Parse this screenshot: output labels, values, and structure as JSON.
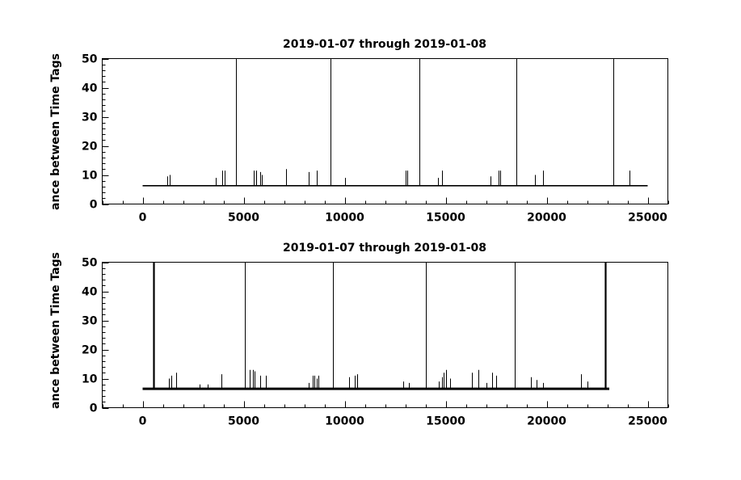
{
  "chart_data": [
    {
      "type": "line",
      "title": "2019-01-07 through 2019-01-08",
      "xlabel": "",
      "ylabel": "ance between Time Tags",
      "xlim": [
        -2000,
        26000
      ],
      "ylim": [
        0,
        50
      ],
      "xticks": [
        0,
        5000,
        10000,
        15000,
        20000,
        25000
      ],
      "yticks": [
        0,
        10,
        20,
        30,
        40,
        50
      ],
      "grid": false,
      "series": [
        {
          "baseline": 6.3,
          "x_start": 0,
          "x_end": 25000,
          "spikes": [
            {
              "x": 1200,
              "y": 9.5
            },
            {
              "x": 1350,
              "y": 10
            },
            {
              "x": 3600,
              "y": 9
            },
            {
              "x": 3950,
              "y": 11.5
            },
            {
              "x": 4050,
              "y": 11.5
            },
            {
              "x": 4600,
              "y": 50
            },
            {
              "x": 5500,
              "y": 11.5
            },
            {
              "x": 5600,
              "y": 11.5
            },
            {
              "x": 5800,
              "y": 11
            },
            {
              "x": 5900,
              "y": 10
            },
            {
              "x": 7100,
              "y": 12
            },
            {
              "x": 8200,
              "y": 11
            },
            {
              "x": 8600,
              "y": 11.5
            },
            {
              "x": 9300,
              "y": 50
            },
            {
              "x": 10000,
              "y": 9
            },
            {
              "x": 13000,
              "y": 11.5
            },
            {
              "x": 13100,
              "y": 11.5
            },
            {
              "x": 13700,
              "y": 50
            },
            {
              "x": 14600,
              "y": 9
            },
            {
              "x": 14800,
              "y": 11.5
            },
            {
              "x": 17200,
              "y": 9.5
            },
            {
              "x": 17600,
              "y": 11.5
            },
            {
              "x": 17700,
              "y": 11.5
            },
            {
              "x": 18500,
              "y": 50
            },
            {
              "x": 19400,
              "y": 10
            },
            {
              "x": 19800,
              "y": 11.5
            },
            {
              "x": 23300,
              "y": 50
            },
            {
              "x": 24100,
              "y": 11.5
            }
          ]
        }
      ]
    },
    {
      "type": "line",
      "title": "2019-01-07 through 2019-01-08",
      "xlabel": "",
      "ylabel": "ance between Time Tags",
      "xlim": [
        -2000,
        26000
      ],
      "ylim": [
        0,
        50
      ],
      "xticks": [
        0,
        5000,
        10000,
        15000,
        20000,
        25000
      ],
      "yticks": [
        0,
        10,
        20,
        30,
        40,
        50
      ],
      "grid": false,
      "series": [
        {
          "baseline": 6.5,
          "x_start": 0,
          "x_end": 23100,
          "spikes": [
            {
              "x": 550,
              "y": 50
            },
            {
              "x": 1300,
              "y": 10
            },
            {
              "x": 1400,
              "y": 11
            },
            {
              "x": 1650,
              "y": 12
            },
            {
              "x": 2800,
              "y": 8
            },
            {
              "x": 3200,
              "y": 8
            },
            {
              "x": 3900,
              "y": 11.5
            },
            {
              "x": 5050,
              "y": 50
            },
            {
              "x": 5300,
              "y": 13
            },
            {
              "x": 5450,
              "y": 13
            },
            {
              "x": 5550,
              "y": 12.5
            },
            {
              "x": 5800,
              "y": 11
            },
            {
              "x": 6100,
              "y": 11
            },
            {
              "x": 8200,
              "y": 8.5
            },
            {
              "x": 8400,
              "y": 11
            },
            {
              "x": 8500,
              "y": 11
            },
            {
              "x": 8600,
              "y": 10
            },
            {
              "x": 8700,
              "y": 11
            },
            {
              "x": 9400,
              "y": 50
            },
            {
              "x": 10200,
              "y": 10.5
            },
            {
              "x": 10500,
              "y": 11
            },
            {
              "x": 10600,
              "y": 11.5
            },
            {
              "x": 12900,
              "y": 9
            },
            {
              "x": 13200,
              "y": 8.5
            },
            {
              "x": 14000,
              "y": 50
            },
            {
              "x": 14650,
              "y": 9
            },
            {
              "x": 14800,
              "y": 10.5
            },
            {
              "x": 14900,
              "y": 12
            },
            {
              "x": 15000,
              "y": 13
            },
            {
              "x": 15200,
              "y": 10
            },
            {
              "x": 16300,
              "y": 12
            },
            {
              "x": 16600,
              "y": 13
            },
            {
              "x": 17000,
              "y": 8.5
            },
            {
              "x": 17300,
              "y": 12
            },
            {
              "x": 17500,
              "y": 11
            },
            {
              "x": 18400,
              "y": 50
            },
            {
              "x": 19200,
              "y": 10.5
            },
            {
              "x": 19500,
              "y": 9.5
            },
            {
              "x": 19800,
              "y": 8.5
            },
            {
              "x": 21700,
              "y": 11.5
            },
            {
              "x": 22000,
              "y": 9
            },
            {
              "x": 22900,
              "y": 50
            }
          ]
        }
      ]
    }
  ]
}
